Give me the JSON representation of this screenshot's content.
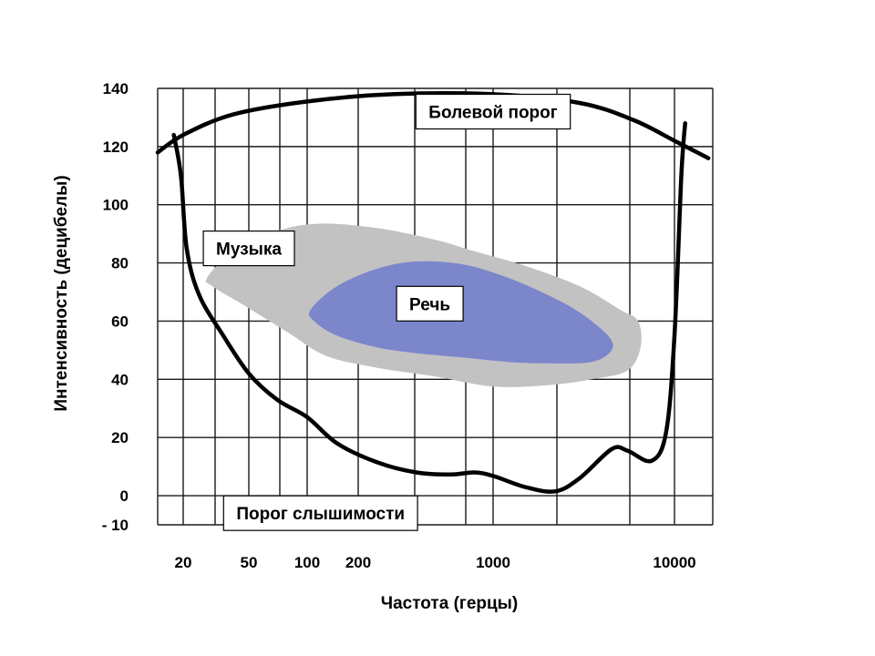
{
  "chart_data": {
    "type": "area",
    "title": "",
    "xlabel": "Частота (герцы)",
    "ylabel": "Интенсивность (децибелы)",
    "x_scale": "log",
    "xlim": [
      15,
      17000
    ],
    "ylim": [
      -10,
      140
    ],
    "x_ticks": [
      {
        "value": 20,
        "label": "20"
      },
      {
        "value": 50,
        "label": "50"
      },
      {
        "value": 100,
        "label": "100"
      },
      {
        "value": 200,
        "label": "200"
      },
      {
        "value": 1000,
        "label": "1000"
      },
      {
        "value": 10000,
        "label": "10000"
      }
    ],
    "y_ticks": [
      {
        "value": 140,
        "label": "140"
      },
      {
        "value": 120,
        "label": "120"
      },
      {
        "value": 100,
        "label": "100"
      },
      {
        "value": 80,
        "label": "80"
      },
      {
        "value": 60,
        "label": "60"
      },
      {
        "value": 40,
        "label": "40"
      },
      {
        "value": 20,
        "label": "20"
      },
      {
        "value": 0,
        "label": "0"
      },
      {
        "value": -10,
        "label": "- 10"
      }
    ],
    "grid": true,
    "series": [
      {
        "name": "Болевой порог",
        "kind": "line",
        "color": "#000000",
        "points": [
          [
            15,
            118
          ],
          [
            20,
            124
          ],
          [
            40,
            131
          ],
          [
            100,
            135.5
          ],
          [
            300,
            138
          ],
          [
            1000,
            138
          ],
          [
            3000,
            135
          ],
          [
            6000,
            129
          ],
          [
            10000,
            122
          ],
          [
            16000,
            116
          ]
        ]
      },
      {
        "name": "Порог слышимости",
        "kind": "line",
        "color": "#000000",
        "points": [
          [
            18,
            124
          ],
          [
            19.5,
            110
          ],
          [
            21,
            85
          ],
          [
            25,
            69
          ],
          [
            35,
            55
          ],
          [
            50,
            42
          ],
          [
            70,
            33
          ],
          [
            100,
            27
          ],
          [
            150,
            18
          ],
          [
            250,
            11.5
          ],
          [
            400,
            8
          ],
          [
            600,
            7.3
          ],
          [
            800,
            8
          ],
          [
            1000,
            6.8
          ],
          [
            1500,
            3
          ],
          [
            2200,
            1.5
          ],
          [
            3000,
            6
          ],
          [
            4500,
            16
          ],
          [
            5500,
            15.5
          ],
          [
            7500,
            12
          ],
          [
            9000,
            22
          ],
          [
            10000,
            55
          ],
          [
            11000,
            110
          ],
          [
            11600,
            128
          ]
        ]
      },
      {
        "name": "Музыка",
        "kind": "area",
        "color": "#c2c2c2",
        "points": [
          [
            28,
            75
          ],
          [
            40,
            84
          ],
          [
            70,
            91
          ],
          [
            120,
            93.5
          ],
          [
            250,
            92
          ],
          [
            500,
            88
          ],
          [
            800,
            84
          ],
          [
            1500,
            79
          ],
          [
            3000,
            72
          ],
          [
            5000,
            64
          ],
          [
            6300,
            60
          ],
          [
            6500,
            51
          ],
          [
            5500,
            43
          ],
          [
            3500,
            40
          ],
          [
            2000,
            38
          ],
          [
            1000,
            37.5
          ],
          [
            500,
            41
          ],
          [
            250,
            44
          ],
          [
            130,
            48
          ],
          [
            80,
            56
          ],
          [
            45,
            66
          ],
          [
            30,
            72
          ]
        ]
      },
      {
        "name": "Речь",
        "kind": "area",
        "color": "#7b86cb",
        "points": [
          [
            105,
            64
          ],
          [
            150,
            72
          ],
          [
            250,
            78
          ],
          [
            400,
            80.5
          ],
          [
            700,
            79.5
          ],
          [
            1200,
            75
          ],
          [
            2000,
            69
          ],
          [
            3000,
            63
          ],
          [
            4300,
            55
          ],
          [
            4500,
            50
          ],
          [
            3500,
            46
          ],
          [
            2000,
            45.5
          ],
          [
            1200,
            46
          ],
          [
            700,
            47.5
          ],
          [
            400,
            49
          ],
          [
            250,
            51
          ],
          [
            150,
            55
          ],
          [
            110,
            60
          ]
        ]
      }
    ],
    "annotations": [
      {
        "key": "pain",
        "text": "Болевой порог",
        "x": 1000,
        "y": 132
      },
      {
        "key": "music",
        "text": "Музыка",
        "x": 50,
        "y": 85
      },
      {
        "key": "speech",
        "text": "Речь",
        "x": 470,
        "y": 66
      },
      {
        "key": "hearing",
        "text": "Порог слышимости",
        "x": 120,
        "y": -6
      }
    ]
  }
}
